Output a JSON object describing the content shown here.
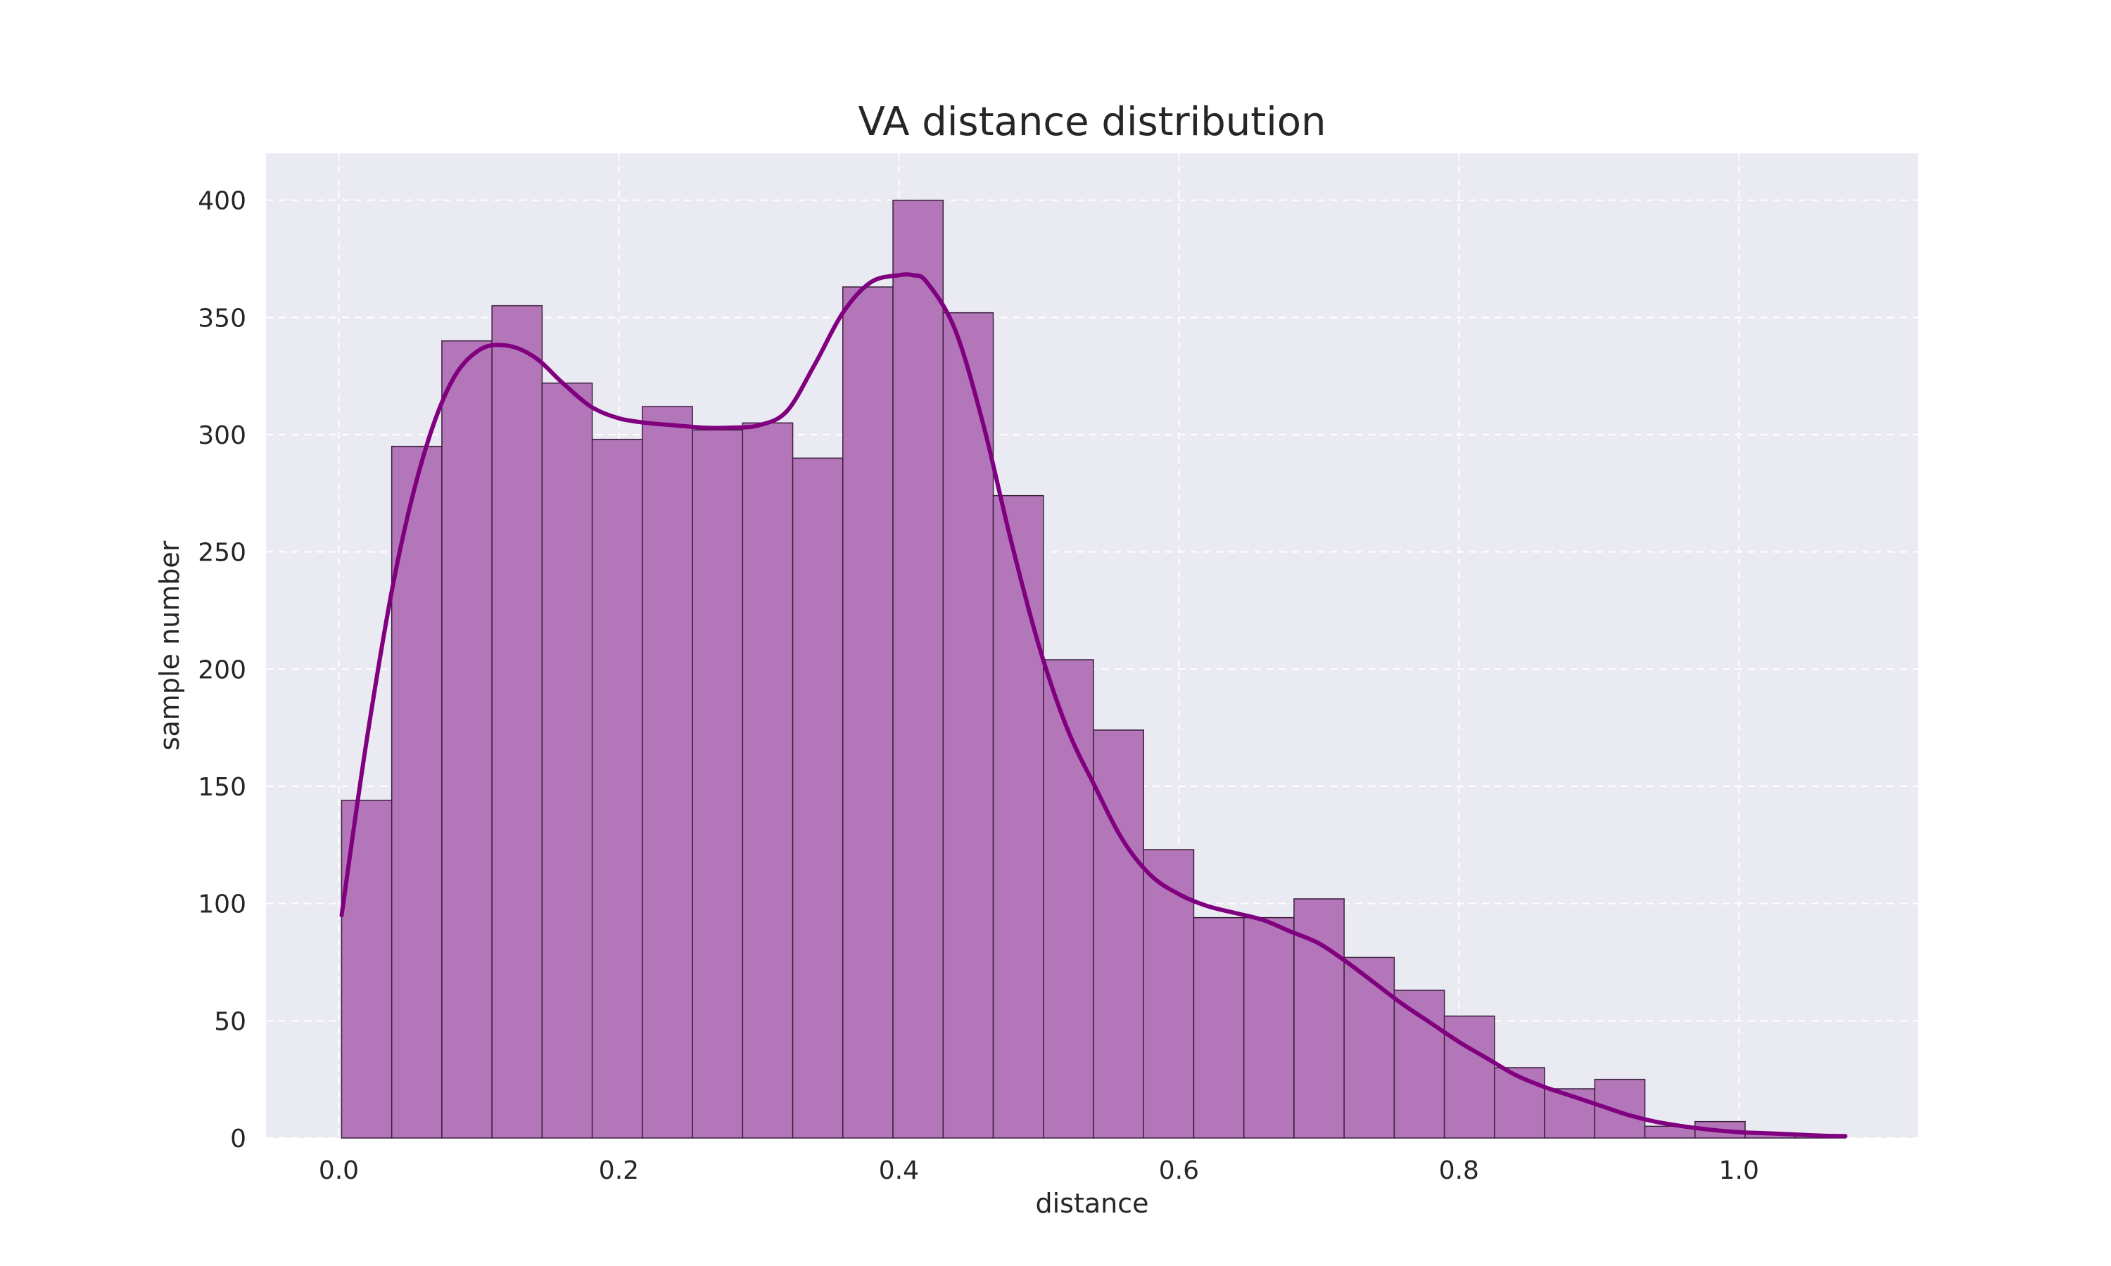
{
  "chart_data": {
    "type": "bar",
    "subtype": "histogram_with_kde",
    "title": "VA distance distribution",
    "xlabel": "distance",
    "ylabel": "sample number",
    "xlim": [
      -0.052,
      1.128
    ],
    "ylim": [
      0,
      420
    ],
    "xticks": [
      0.0,
      0.2,
      0.4,
      0.6,
      0.8,
      1.0
    ],
    "xtick_labels": [
      "0.0",
      "0.2",
      "0.4",
      "0.6",
      "0.8",
      "1.0"
    ],
    "yticks": [
      0,
      50,
      100,
      150,
      200,
      250,
      300,
      350,
      400
    ],
    "ytick_labels": [
      "0",
      "50",
      "100",
      "150",
      "200",
      "250",
      "300",
      "350",
      "400"
    ],
    "grid": true,
    "bin_edges": [
      0.002,
      0.0378,
      0.0736,
      0.1094,
      0.1452,
      0.181,
      0.2168,
      0.2526,
      0.2884,
      0.3242,
      0.36,
      0.3958,
      0.4316,
      0.4674,
      0.5032,
      0.539,
      0.5748,
      0.6106,
      0.6464,
      0.6822,
      0.718,
      0.7538,
      0.7896,
      0.8254,
      0.8612,
      0.897,
      0.9328,
      0.9686,
      1.0044,
      1.0402,
      1.076
    ],
    "values": [
      144,
      295,
      340,
      355,
      322,
      298,
      312,
      302,
      305,
      290,
      363,
      400,
      352,
      274,
      204,
      174,
      123,
      94,
      94,
      102,
      77,
      63,
      52,
      30,
      21,
      25,
      5,
      7,
      2,
      1
    ],
    "kde": {
      "x": [
        0.002,
        0.02,
        0.04,
        0.06,
        0.08,
        0.1,
        0.12,
        0.14,
        0.16,
        0.18,
        0.2,
        0.22,
        0.24,
        0.26,
        0.28,
        0.3,
        0.32,
        0.34,
        0.36,
        0.38,
        0.4,
        0.41,
        0.42,
        0.44,
        0.46,
        0.48,
        0.5,
        0.52,
        0.54,
        0.56,
        0.58,
        0.6,
        0.62,
        0.64,
        0.66,
        0.68,
        0.7,
        0.72,
        0.74,
        0.76,
        0.78,
        0.8,
        0.82,
        0.84,
        0.86,
        0.88,
        0.9,
        0.92,
        0.94,
        0.96,
        0.98,
        1.0,
        1.02,
        1.04,
        1.06,
        1.076
      ],
      "y": [
        95,
        170,
        240,
        290,
        322,
        336,
        338,
        333,
        322,
        312,
        307,
        305,
        304,
        303,
        303,
        304,
        310,
        330,
        352,
        365,
        368,
        368,
        365,
        345,
        305,
        255,
        210,
        175,
        150,
        127,
        112,
        104,
        99,
        96,
        93,
        88,
        83,
        75,
        66,
        57,
        49,
        41,
        34,
        27,
        22,
        18,
        14,
        10,
        7,
        5,
        3.5,
        2.5,
        2,
        1.5,
        1,
        0.8
      ]
    },
    "colors": {
      "bar_fill": "#b376b8",
      "bar_edge": "#3a1f3c",
      "kde_line": "#800080",
      "plot_background": "#eaeaf2",
      "grid": "#ffffff"
    }
  }
}
